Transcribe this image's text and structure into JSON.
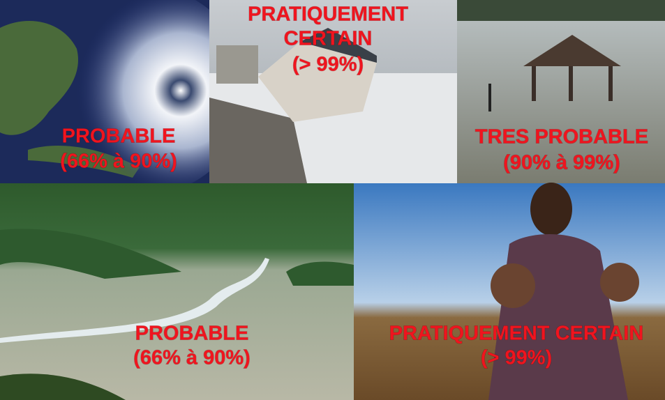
{
  "panels": [
    {
      "lines": [
        "PROBABLE",
        "(66% à 90%)"
      ]
    },
    {
      "lines": [
        "PRATIQUEMENT",
        "CERTAIN",
        "(> 99%)"
      ]
    },
    {
      "lines": [
        "TRES PROBABLE",
        "(90% à 99%)"
      ]
    },
    {
      "lines": [
        "PROBABLE",
        "(66% à 90%)"
      ]
    },
    {
      "lines": [
        "PRATIQUEMENT CERTAIN",
        "(> 99%)"
      ]
    }
  ]
}
